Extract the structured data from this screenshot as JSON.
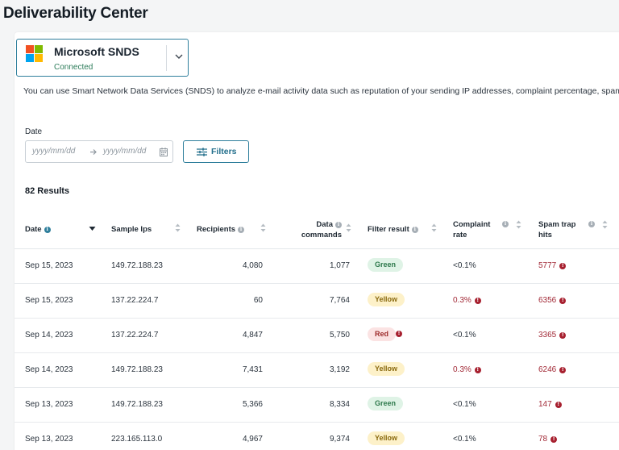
{
  "page": {
    "title": "Deliverability Center"
  },
  "provider": {
    "name": "Microsoft SNDS",
    "status": "Connected"
  },
  "description": "You can use Smart Network Data Services (SNDS) to analyze e-mail activity data such as reputation of your sending IP addresses, complaint percentage, spam",
  "filters": {
    "date_label": "Date",
    "start_placeholder": "yyyy/mm/dd",
    "end_placeholder": "yyyy/mm/dd",
    "filters_label": "Filters"
  },
  "results": {
    "count_label": "82 Results"
  },
  "table": {
    "headers": {
      "date": "Date",
      "sample_ips": "Sample Ips",
      "recipients": "Recipients",
      "data_commands_1": "Data",
      "data_commands_2": "commands",
      "filter_result": "Filter result",
      "complaint_1": "Complaint",
      "complaint_2": "rate",
      "spam_1": "Spam trap",
      "spam_2": "hits"
    },
    "rows": [
      {
        "date": "Sep 15, 2023",
        "ip": "149.72.188.23",
        "recipients": "4,080",
        "data_commands": "1,077",
        "filter": "Green",
        "complaint": "<0.1%",
        "spam": "5777"
      },
      {
        "date": "Sep 15, 2023",
        "ip": "137.22.224.7",
        "recipients": "60",
        "data_commands": "7,764",
        "filter": "Yellow",
        "complaint": "0.3%",
        "spam": "6356"
      },
      {
        "date": "Sep 14, 2023",
        "ip": "137.22.224.7",
        "recipients": "4,847",
        "data_commands": "5,750",
        "filter": "Red",
        "complaint": "<0.1%",
        "spam": "3365"
      },
      {
        "date": "Sep 14, 2023",
        "ip": "149.72.188.23",
        "recipients": "7,431",
        "data_commands": "3,192",
        "filter": "Yellow",
        "complaint": "0.3%",
        "spam": "6246"
      },
      {
        "date": "Sep 13, 2023",
        "ip": "149.72.188.23",
        "recipients": "5,366",
        "data_commands": "8,334",
        "filter": "Green",
        "complaint": "<0.1%",
        "spam": "147"
      },
      {
        "date": "Sep 13, 2023",
        "ip": "223.165.113.0",
        "recipients": "4,967",
        "data_commands": "9,374",
        "filter": "Yellow",
        "complaint": "<0.1%",
        "spam": "78"
      }
    ]
  },
  "colors": {
    "accent": "#2f7f9c",
    "alert": "#a7202f",
    "ms_red": "#f25022",
    "ms_green": "#7fba00",
    "ms_blue": "#00a4ef",
    "ms_yellow": "#ffb900"
  }
}
